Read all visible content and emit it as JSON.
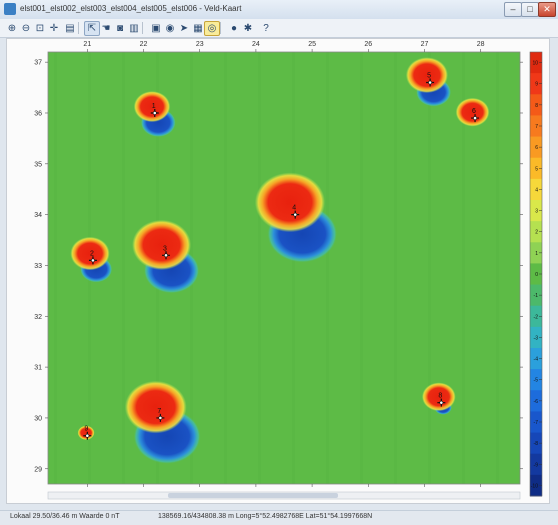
{
  "window": {
    "title": "elst001_elst002_elst003_elst004_elst005_elst006 - Veld-Kaart",
    "min_label": "–",
    "max_label": "□",
    "close_label": "✕"
  },
  "toolbar": {
    "buttons": [
      {
        "name": "zoom-in-icon",
        "glyph": "⊕"
      },
      {
        "name": "zoom-out-icon",
        "glyph": "⊖"
      },
      {
        "name": "fit-window-icon",
        "glyph": "⊡"
      },
      {
        "name": "crosshair-icon",
        "glyph": "✛"
      },
      {
        "name": "table-icon",
        "glyph": "▤"
      },
      {
        "name": "select-icon",
        "glyph": "⇱",
        "pressed": true
      },
      {
        "name": "hand-pan-icon",
        "glyph": "☚"
      },
      {
        "name": "camera-icon",
        "glyph": "◙"
      },
      {
        "name": "chart-icon",
        "glyph": "▥"
      },
      {
        "name": "save-icon",
        "glyph": "▣"
      },
      {
        "name": "globe-icon",
        "glyph": "◉"
      },
      {
        "name": "arrow-icon",
        "glyph": "➤"
      },
      {
        "name": "grid-icon",
        "glyph": "▦"
      },
      {
        "name": "target-icon",
        "glyph": "◎",
        "highlighted": true
      },
      {
        "name": "record-icon",
        "glyph": "●"
      },
      {
        "name": "settings-icon",
        "glyph": "✱"
      },
      {
        "name": "help-icon",
        "glyph": "?"
      }
    ]
  },
  "chart_data": {
    "type": "heatmap",
    "x_ticks": [
      "21",
      "22",
      "23",
      "24",
      "25",
      "26",
      "27",
      "28"
    ],
    "y_ticks": [
      "29",
      "30",
      "31",
      "32",
      "33",
      "34",
      "35",
      "36",
      "37"
    ],
    "xlim": [
      20.3,
      28.7
    ],
    "ylim": [
      28.7,
      37.2
    ],
    "background_color": "#5dbb46",
    "colorbar": {
      "ticks": [
        "10",
        "9",
        "8",
        "7",
        "6",
        "5",
        "4",
        "3",
        "2",
        "1",
        "0",
        "-1",
        "-2",
        "-3",
        "-4",
        "-5",
        "-6",
        "-7",
        "-8",
        "-9",
        "-10"
      ],
      "colors": [
        "#e02a10",
        "#f03818",
        "#f45a18",
        "#f77a1e",
        "#f99a22",
        "#fbba28",
        "#f6d83a",
        "#d9e84a",
        "#b5e150",
        "#8fd254",
        "#5dbb46",
        "#4cb96a",
        "#3cb89a",
        "#32b3c3",
        "#2ba0dc",
        "#2385e3",
        "#1d6cdc",
        "#1957cc",
        "#1647b8",
        "#13399f",
        "#0f2c86"
      ]
    },
    "anomalies": [
      {
        "label": "1",
        "x": 22.2,
        "y": 36.0,
        "positive": 0.65,
        "negative": 0.6
      },
      {
        "label": "2",
        "x": 21.1,
        "y": 33.1,
        "positive": 0.7,
        "negative": 0.55
      },
      {
        "label": "3",
        "x": 22.4,
        "y": 33.2,
        "positive": 1.05,
        "negative": 0.95
      },
      {
        "label": "4",
        "x": 24.7,
        "y": 34.0,
        "positive": 1.25,
        "negative": 1.2
      },
      {
        "label": "5",
        "x": 27.1,
        "y": 36.6,
        "positive": 0.75,
        "negative": 0.6
      },
      {
        "label": "6",
        "x": 27.9,
        "y": 35.9,
        "positive": 0.6,
        "negative": 0.15
      },
      {
        "label": "7",
        "x": 22.3,
        "y": 30.0,
        "positive": 1.1,
        "negative": 1.15
      },
      {
        "label": "8",
        "x": 27.3,
        "y": 30.3,
        "positive": 0.6,
        "negative": 0.3
      },
      {
        "label": "9",
        "x": 21.0,
        "y": 29.65,
        "positive": 0.3,
        "negative": 0.0
      }
    ]
  },
  "status": {
    "left": "Lokaal 29.50/36.46 m Waarde 0 nT",
    "right": "138569.16/434808.38 m Long=5°52.4982768E Lat=51°54.1997668N"
  }
}
